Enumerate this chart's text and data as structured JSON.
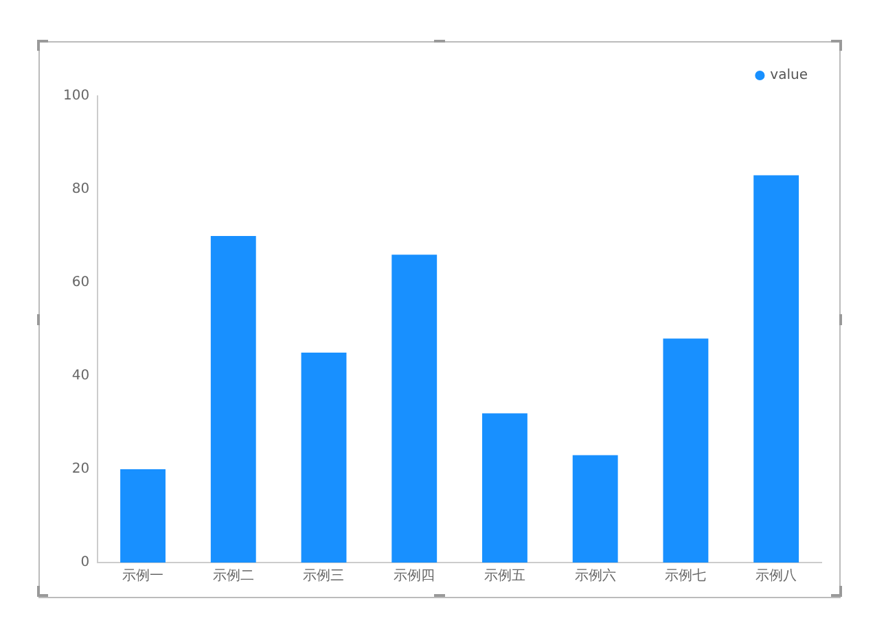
{
  "chart_data": {
    "type": "bar",
    "categories": [
      "示例一",
      "示例二",
      "示例三",
      "示例四",
      "示例五",
      "示例六",
      "示例七",
      "示例八"
    ],
    "series": [
      {
        "name": "value",
        "color": "#1890ff",
        "values": [
          20,
          70,
          45,
          66,
          32,
          23,
          48,
          83
        ]
      }
    ],
    "ylim": [
      0,
      100
    ],
    "yticks": [
      0,
      20,
      40,
      60,
      80,
      100
    ],
    "grid": false,
    "legend": "top right"
  }
}
